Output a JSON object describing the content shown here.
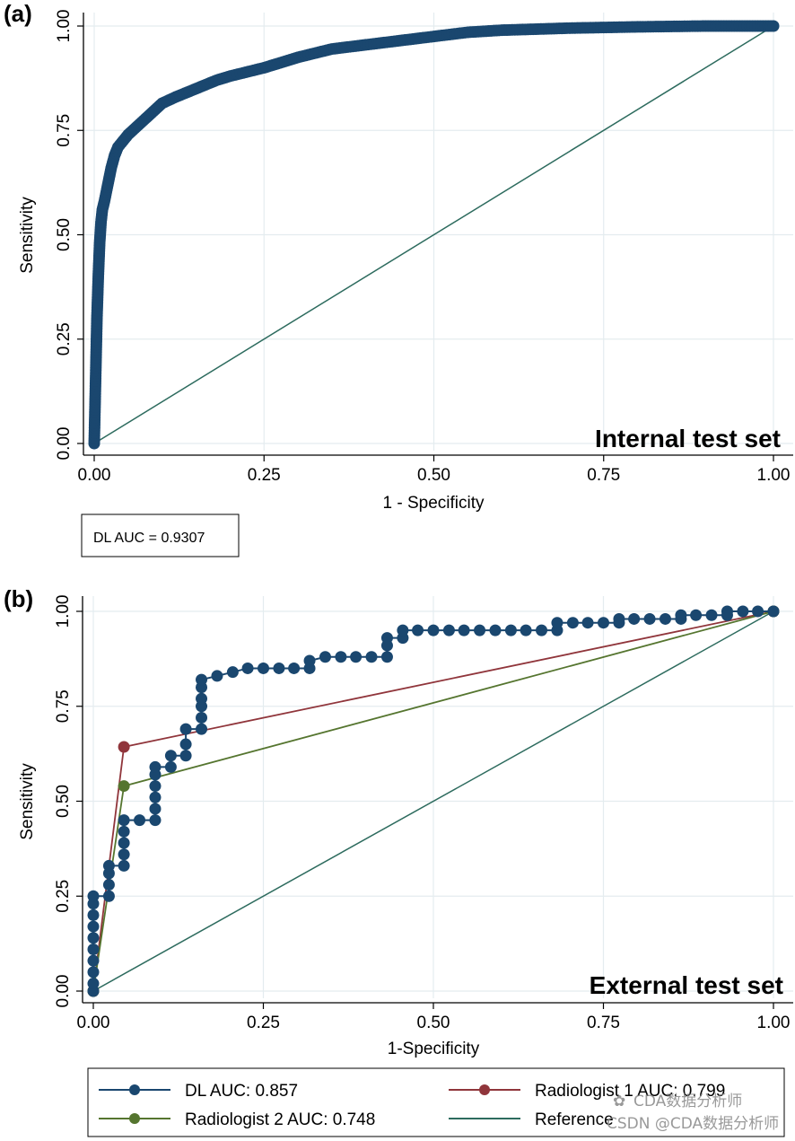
{
  "chart_data": [
    {
      "panel": "(a)",
      "type": "line",
      "title": "Internal test set",
      "xlabel": "1 - Specificity",
      "ylabel": "Sensitivity",
      "xlim": [
        0,
        1
      ],
      "ylim": [
        0,
        1
      ],
      "xticks": [
        "0.00",
        "0.25",
        "0.50",
        "0.75",
        "1.00"
      ],
      "yticks": [
        "0.00",
        "0.25",
        "0.50",
        "0.75",
        "1.00"
      ],
      "series": [
        {
          "name": "DL",
          "color": "#1a476f",
          "markers": true,
          "x": [
            0,
            0.002,
            0.004,
            0.006,
            0.008,
            0.01,
            0.012,
            0.015,
            0.02,
            0.025,
            0.03,
            0.035,
            0.04,
            0.05,
            0.06,
            0.07,
            0.08,
            0.09,
            0.1,
            0.12,
            0.15,
            0.18,
            0.2,
            0.25,
            0.27,
            0.3,
            0.35,
            0.4,
            0.45,
            0.5,
            0.55,
            0.6,
            0.7,
            0.8,
            0.9,
            1.0
          ],
          "y": [
            0,
            0.15,
            0.3,
            0.4,
            0.48,
            0.53,
            0.56,
            0.58,
            0.62,
            0.66,
            0.69,
            0.71,
            0.72,
            0.74,
            0.755,
            0.77,
            0.785,
            0.8,
            0.815,
            0.83,
            0.85,
            0.87,
            0.88,
            0.9,
            0.91,
            0.925,
            0.945,
            0.955,
            0.965,
            0.975,
            0.985,
            0.99,
            0.995,
            0.998,
            1.0,
            1.0
          ]
        },
        {
          "name": "Reference",
          "color": "#2d6b5e",
          "markers": false,
          "x": [
            0,
            1
          ],
          "y": [
            0,
            1
          ]
        }
      ],
      "legend": [
        "DL AUC = 0.9307"
      ]
    },
    {
      "panel": "(b)",
      "type": "line",
      "title": "External test set",
      "xlabel": "1-Specificity",
      "ylabel": "Sensitivity",
      "xlim": [
        0,
        1
      ],
      "ylim": [
        0,
        1
      ],
      "xticks": [
        "0.00",
        "0.25",
        "0.50",
        "0.75",
        "1.00"
      ],
      "yticks": [
        "0.00",
        "0.25",
        "0.50",
        "0.75",
        "1.00"
      ],
      "series": [
        {
          "name": "DL AUC: 0.857",
          "color": "#1a476f",
          "markers": true,
          "x": [
            0,
            0,
            0,
            0,
            0,
            0,
            0,
            0,
            0,
            0,
            0.023,
            0.023,
            0.023,
            0.023,
            0.045,
            0.045,
            0.045,
            0.045,
            0.045,
            0.068,
            0.091,
            0.091,
            0.091,
            0.091,
            0.091,
            0.091,
            0.114,
            0.114,
            0.136,
            0.136,
            0.136,
            0.159,
            0.159,
            0.159,
            0.159,
            0.159,
            0.159,
            0.182,
            0.205,
            0.227,
            0.25,
            0.273,
            0.295,
            0.318,
            0.318,
            0.341,
            0.364,
            0.386,
            0.409,
            0.432,
            0.432,
            0.432,
            0.455,
            0.455,
            0.477,
            0.5,
            0.523,
            0.545,
            0.568,
            0.591,
            0.614,
            0.636,
            0.659,
            0.682,
            0.682,
            0.705,
            0.727,
            0.75,
            0.773,
            0.773,
            0.795,
            0.818,
            0.841,
            0.864,
            0.864,
            0.886,
            0.909,
            0.932,
            0.932,
            0.955,
            0.977,
            1.0
          ],
          "y": [
            0,
            0.02,
            0.05,
            0.08,
            0.11,
            0.14,
            0.17,
            0.2,
            0.23,
            0.25,
            0.25,
            0.28,
            0.31,
            0.33,
            0.33,
            0.36,
            0.39,
            0.42,
            0.45,
            0.45,
            0.45,
            0.48,
            0.51,
            0.54,
            0.57,
            0.59,
            0.59,
            0.62,
            0.62,
            0.65,
            0.69,
            0.69,
            0.72,
            0.75,
            0.77,
            0.8,
            0.82,
            0.83,
            0.84,
            0.85,
            0.85,
            0.85,
            0.85,
            0.85,
            0.87,
            0.88,
            0.88,
            0.88,
            0.88,
            0.88,
            0.91,
            0.93,
            0.93,
            0.95,
            0.95,
            0.95,
            0.95,
            0.95,
            0.95,
            0.95,
            0.95,
            0.95,
            0.95,
            0.95,
            0.97,
            0.97,
            0.97,
            0.97,
            0.97,
            0.98,
            0.98,
            0.98,
            0.98,
            0.98,
            0.99,
            0.99,
            0.99,
            0.99,
            1.0,
            1.0,
            1.0,
            1.0
          ]
        },
        {
          "name": "Radiologist 1 AUC: 0.799",
          "color": "#90353b",
          "markers": true,
          "x": [
            0,
            0.045,
            1
          ],
          "y": [
            0,
            0.643,
            1
          ]
        },
        {
          "name": "Radiologist 2 AUC: 0.748",
          "color": "#55752f",
          "markers": true,
          "x": [
            0,
            0.045,
            1
          ],
          "y": [
            0,
            0.54,
            1
          ]
        },
        {
          "name": "Reference",
          "color": "#2d6b5e",
          "markers": false,
          "x": [
            0,
            1
          ],
          "y": [
            0,
            1
          ]
        }
      ],
      "legend": [
        "DL AUC: 0.857",
        "Radiologist 1 AUC: 0.799",
        "Radiologist 2 AUC: 0.748",
        "Reference"
      ]
    }
  ],
  "watermark": {
    "line1": "CDA数据分析师",
    "line2": "CSDN @CDA数据分析师"
  }
}
